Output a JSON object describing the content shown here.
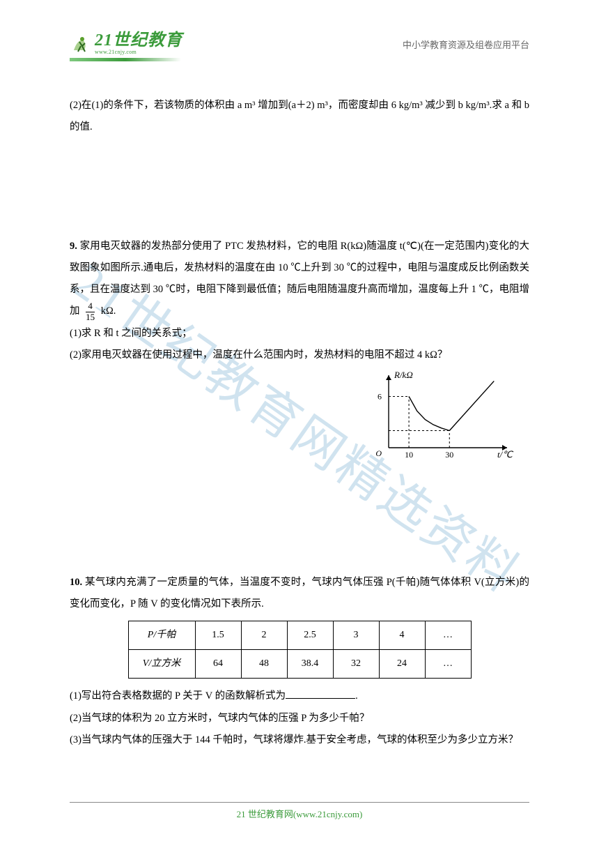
{
  "watermark": "21世纪教育网精选资料",
  "header": {
    "logo_main": "21世纪教育",
    "logo_sub": "www.21cnjy.com",
    "logo_color": "#3b9b3b",
    "right_text": "中小学教育资源及组卷应用平台"
  },
  "q8_cont": {
    "line": "(2)在(1)的条件下，若该物质的体积由 a m³ 增加到(a＋2) m³，而密度却由 6 kg/m³ 减少到 b kg/m³.求 a 和 b 的值."
  },
  "q9": {
    "num": "9.",
    "l1": "家用电灭蚊器的发热部分使用了 PTC 发热材料，它的电阻 R(kΩ)随温度 t(℃)(在一定范围内)变化的大致图象如图所示.通电后，发热材料的温度在由 10 ℃上升到 30 ℃的过程中，电阻与温度成反比例函数关系，且在温度达到 30 ℃时，电阻下降到最低值；随后电阻随温度升高而增加，温度每上升 1 ℃，电阻增加",
    "frac_n": "4",
    "frac_d": "15",
    "l1_tail": " kΩ.",
    "p1": "(1)求 R 和 t 之间的关系式；",
    "p2": "(2)家用电灭蚊器在使用过程中，温度在什么范围内时，发热材料的电阻不超过 4 kΩ？"
  },
  "chart": {
    "type": "piecewise-line",
    "y_label": "R/kΩ",
    "x_label": "t/℃",
    "y_ticks": [
      6
    ],
    "x_ticks": [
      10,
      30
    ],
    "xlim": [
      0,
      55
    ],
    "ylim": [
      0,
      8
    ],
    "curve_points": [
      [
        10,
        6
      ],
      [
        14,
        4.3
      ],
      [
        18,
        3.3
      ],
      [
        22,
        2.7
      ],
      [
        26,
        2.3
      ],
      [
        30,
        2
      ]
    ],
    "line_points": [
      [
        30,
        2
      ],
      [
        52,
        7.8
      ]
    ],
    "dash_lines": [
      {
        "from": [
          0,
          6
        ],
        "to": [
          10,
          6
        ]
      },
      {
        "from": [
          10,
          0
        ],
        "to": [
          10,
          6
        ]
      },
      {
        "from": [
          0,
          2
        ],
        "to": [
          30,
          2
        ]
      },
      {
        "from": [
          30,
          0
        ],
        "to": [
          30,
          2
        ]
      }
    ],
    "stroke": "#000000",
    "stroke_width": 1.4,
    "origin_label": "O"
  },
  "q10": {
    "num": "10.",
    "intro": "某气球内充满了一定质量的气体，当温度不变时，气球内气体压强 P(千帕)随气体体积 V(立方米)的变化而变化，P 随 V 的变化情况如下表所示.",
    "table": {
      "row1_head": "P/千帕",
      "row2_head": "V/立方米",
      "row1": [
        "1.5",
        "2",
        "2.5",
        "3",
        "4",
        "…"
      ],
      "row2": [
        "64",
        "48",
        "38.4",
        "32",
        "24",
        "…"
      ]
    },
    "p1_a": "(1)写出符合表格数据的 P 关于 V 的函数解析式为",
    "p1_b": ".",
    "p2": "(2)当气球的体积为 20 立方米时，气球内气体的压强 P 为多少千帕？",
    "p3": "(3)当气球内气体的压强大于 144 千帕时，气球将爆炸.基于安全考虑，气球的体积至少为多少立方米？"
  },
  "footer": {
    "text": "21 世纪教育网(www.21cnjy.com)"
  }
}
